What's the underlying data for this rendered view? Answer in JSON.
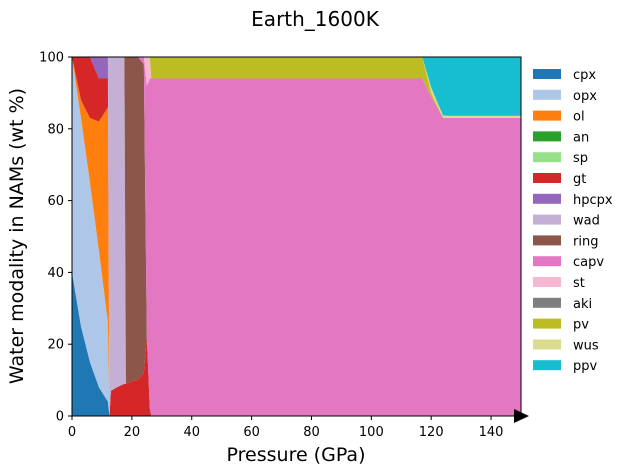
{
  "chart_data": {
    "type": "area",
    "title": "Earth_1600K",
    "xlabel": "Pressure (GPa)",
    "ylabel": "Water modality in NAMs (wt %)",
    "xlim": [
      0,
      150
    ],
    "ylim": [
      0,
      100
    ],
    "xticks": [
      0,
      20,
      40,
      60,
      80,
      100,
      120,
      140
    ],
    "yticks": [
      0,
      20,
      40,
      60,
      80,
      100
    ],
    "grid": false,
    "legend_position": "right",
    "x": [
      0,
      3,
      6,
      9,
      12,
      12.5,
      13,
      15,
      17.5,
      18,
      21,
      21.5,
      22,
      24,
      25,
      26,
      26.5,
      27,
      40,
      80,
      116,
      117,
      120,
      122,
      124,
      126,
      150
    ],
    "series": [
      {
        "name": "cpx",
        "color": "#1f77b4",
        "values": [
          40,
          25,
          15,
          8,
          4,
          0,
          0,
          0,
          0,
          0,
          0,
          0,
          0,
          0,
          0,
          0,
          0,
          0,
          0,
          0,
          0,
          0,
          0,
          0,
          0,
          0,
          0
        ]
      },
      {
        "name": "opx",
        "color": "#aec7e8",
        "values": [
          60,
          58,
          50,
          38,
          22,
          0,
          0,
          0,
          0,
          0,
          0,
          0,
          0,
          0,
          0,
          0,
          0,
          0,
          0,
          0,
          0,
          0,
          0,
          0,
          0,
          0,
          0
        ]
      },
      {
        "name": "ol",
        "color": "#ff7f0e",
        "values": [
          0,
          5,
          18,
          36,
          60,
          0,
          0,
          0,
          0,
          0,
          0,
          0,
          0,
          0,
          0,
          0,
          0,
          0,
          0,
          0,
          0,
          0,
          0,
          0,
          0,
          0,
          0
        ]
      },
      {
        "name": "an",
        "color": "#2ca02c",
        "values": [
          0,
          0,
          0,
          0,
          0,
          0,
          0,
          0,
          0,
          0,
          0,
          0,
          0,
          0,
          0,
          0,
          0,
          0,
          0,
          0,
          0,
          0,
          0,
          0,
          0,
          0,
          0
        ]
      },
      {
        "name": "sp",
        "color": "#98df8a",
        "values": [
          0,
          0,
          0,
          0,
          0,
          0,
          0,
          0,
          0,
          0,
          0,
          0,
          0,
          0,
          0,
          0,
          0,
          0,
          0,
          0,
          0,
          0,
          0,
          0,
          0,
          0,
          0
        ]
      },
      {
        "name": "gt",
        "color": "#d62728",
        "values": [
          0,
          12,
          17,
          12,
          8,
          0,
          7,
          8,
          9,
          9,
          10,
          10,
          10,
          12,
          22,
          2,
          0,
          0,
          0,
          0,
          0,
          0,
          0,
          0,
          0,
          0,
          0
        ]
      },
      {
        "name": "hpcpx",
        "color": "#9467bd",
        "values": [
          0,
          0,
          0,
          6,
          6,
          0,
          0,
          0,
          0,
          0,
          0,
          0,
          0,
          0,
          0,
          0,
          0,
          0,
          0,
          0,
          0,
          0,
          0,
          0,
          0,
          0,
          0
        ]
      },
      {
        "name": "wad",
        "color": "#c5b0d5",
        "values": [
          0,
          0,
          0,
          0,
          0,
          100,
          93,
          92,
          91,
          0,
          0,
          0,
          0,
          0,
          0,
          0,
          0,
          0,
          0,
          0,
          0,
          0,
          0,
          0,
          0,
          0,
          0
        ]
      },
      {
        "name": "ring",
        "color": "#8c564b",
        "values": [
          0,
          0,
          0,
          0,
          0,
          0,
          0,
          0,
          0,
          91,
          90,
          90,
          90,
          86,
          0,
          0,
          0,
          0,
          0,
          0,
          0,
          0,
          0,
          0,
          0,
          0,
          0
        ]
      },
      {
        "name": "capv",
        "color": "#e377c2",
        "values": [
          0,
          0,
          0,
          0,
          0,
          0,
          0,
          0,
          0,
          0,
          0,
          0,
          0,
          2,
          70,
          92,
          94,
          94,
          94,
          94,
          94,
          94,
          89,
          86,
          83,
          83,
          83
        ]
      },
      {
        "name": "st",
        "color": "#f7b6d2",
        "values": [
          0,
          0,
          0,
          0,
          0,
          0,
          0,
          0,
          0,
          0,
          0,
          0,
          0,
          0,
          8,
          6,
          0,
          0,
          0,
          0,
          0,
          0,
          0,
          0,
          0,
          0,
          0
        ]
      },
      {
        "name": "aki",
        "color": "#7f7f7f",
        "values": [
          0,
          0,
          0,
          0,
          0,
          0,
          0,
          0,
          0,
          0,
          0,
          0,
          0,
          0,
          0,
          0,
          0,
          0,
          0,
          0,
          0,
          0,
          0,
          0,
          0,
          0,
          0
        ]
      },
      {
        "name": "pv",
        "color": "#bcbd22",
        "values": [
          0,
          0,
          0,
          0,
          0,
          0,
          0,
          0,
          0,
          0,
          0,
          0,
          0,
          0,
          0,
          0,
          6,
          6,
          6,
          6,
          6,
          6,
          1,
          0.5,
          0,
          0,
          0
        ]
      },
      {
        "name": "wus",
        "color": "#dbdb8d",
        "values": [
          0,
          0,
          0,
          0,
          0,
          0,
          0,
          0,
          0,
          0,
          0,
          0,
          0,
          0,
          0,
          0,
          0,
          0,
          0,
          0,
          0,
          0,
          1.5,
          1,
          0.7,
          0.6,
          0.6
        ]
      },
      {
        "name": "ppv",
        "color": "#17becf",
        "values": [
          0,
          0,
          0,
          0,
          0,
          0,
          0,
          0,
          0,
          0,
          0,
          0,
          0,
          0,
          0,
          0,
          0,
          0,
          0,
          0,
          0,
          0,
          8.5,
          12.5,
          16.3,
          16.4,
          16.4
        ]
      }
    ]
  }
}
